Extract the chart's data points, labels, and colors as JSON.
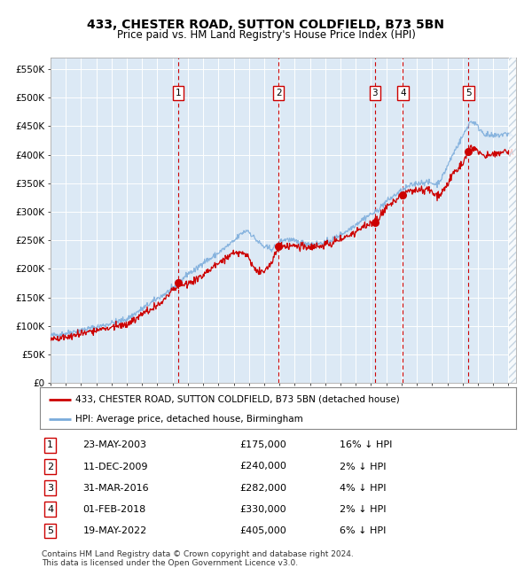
{
  "title": "433, CHESTER ROAD, SUTTON COLDFIELD, B73 5BN",
  "subtitle": "Price paid vs. HM Land Registry's House Price Index (HPI)",
  "ylim": [
    0,
    570000
  ],
  "yticks": [
    0,
    50000,
    100000,
    150000,
    200000,
    250000,
    300000,
    350000,
    400000,
    450000,
    500000,
    550000
  ],
  "ytick_labels": [
    "£0",
    "£50K",
    "£100K",
    "£150K",
    "£200K",
    "£250K",
    "£300K",
    "£350K",
    "£400K",
    "£450K",
    "£500K",
    "£550K"
  ],
  "xstart": 1995.0,
  "xend": 2025.5,
  "background_color": "#dce9f5",
  "grid_color": "#ffffff",
  "red_line_color": "#cc0000",
  "blue_line_color": "#7aabdb",
  "vline_color": "#cc0000",
  "purchases": [
    {
      "num": 1,
      "date_num": 2003.38,
      "price": 175000,
      "label": "1",
      "date_str": "23-MAY-2003",
      "price_str": "£175,000",
      "pct": "16%"
    },
    {
      "num": 2,
      "date_num": 2009.94,
      "price": 240000,
      "label": "2",
      "date_str": "11-DEC-2009",
      "price_str": "£240,000",
      "pct": "2%"
    },
    {
      "num": 3,
      "date_num": 2016.25,
      "price": 282000,
      "label": "3",
      "date_str": "31-MAR-2016",
      "price_str": "£282,000",
      "pct": "4%"
    },
    {
      "num": 4,
      "date_num": 2018.08,
      "price": 330000,
      "label": "4",
      "date_str": "01-FEB-2018",
      "price_str": "£330,000",
      "pct": "2%"
    },
    {
      "num": 5,
      "date_num": 2022.38,
      "price": 405000,
      "label": "5",
      "date_str": "19-MAY-2022",
      "price_str": "£405,000",
      "pct": "6%"
    }
  ],
  "legend_red": "433, CHESTER ROAD, SUTTON COLDFIELD, B73 5BN (detached house)",
  "legend_blue": "HPI: Average price, detached house, Birmingham",
  "footnote1": "Contains HM Land Registry data © Crown copyright and database right 2024.",
  "footnote2": "This data is licensed under the Open Government Licence v3.0.",
  "title_fontsize": 10,
  "subtitle_fontsize": 8.5,
  "tick_fontsize": 7.5,
  "legend_fontsize": 7.5,
  "table_fontsize": 8,
  "footnote_fontsize": 6.5
}
